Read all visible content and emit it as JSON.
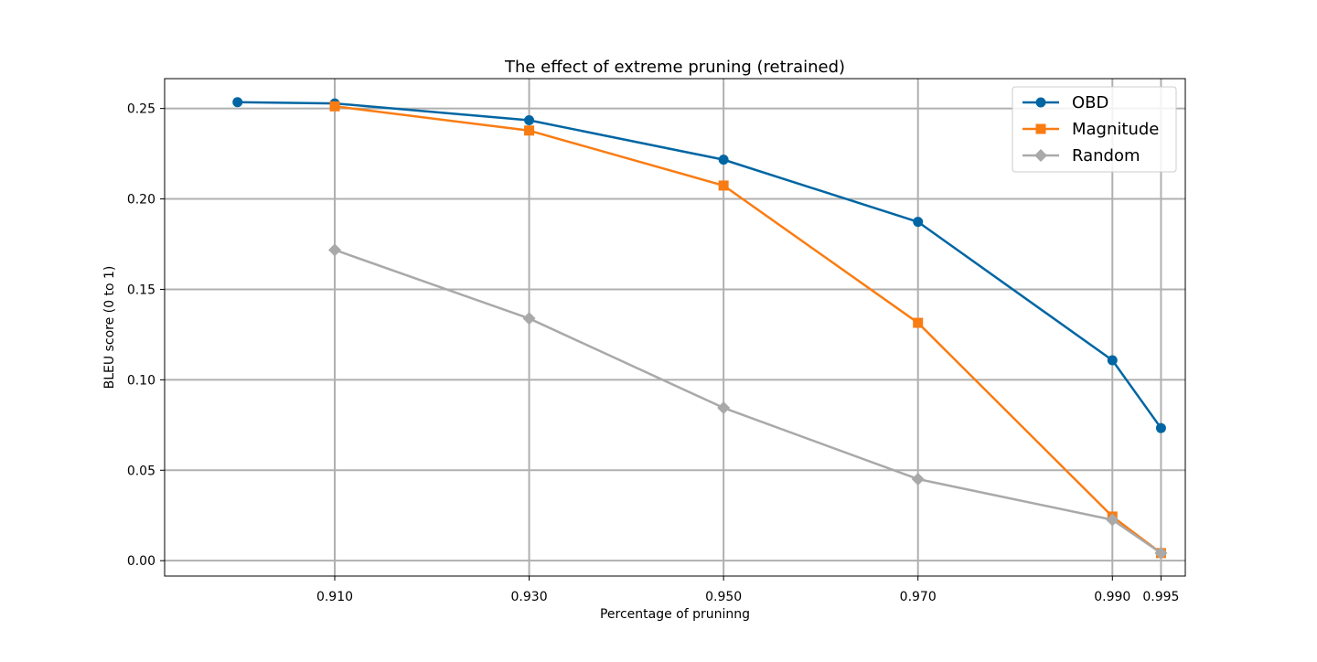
{
  "chart_data": {
    "type": "line",
    "title": "The effect of extreme pruning (retrained)",
    "xlabel": "Percentage of pruninng",
    "ylabel": "BLEU score (0 to 1)",
    "xlim": [
      0.8925,
      0.9975
    ],
    "ylim": [
      -0.0085,
      0.2665
    ],
    "xticks": [
      0.91,
      0.93,
      0.95,
      0.97,
      0.99,
      0.995
    ],
    "xtick_labels": [
      "0.910",
      "0.930",
      "0.950",
      "0.970",
      "0.990",
      "0.995"
    ],
    "yticks": [
      0.0,
      0.05,
      0.1,
      0.15,
      0.2,
      0.25
    ],
    "ytick_labels": [
      "0.00",
      "0.05",
      "0.10",
      "0.15",
      "0.20",
      "0.25"
    ],
    "grid": true,
    "legend_position": "upper right",
    "series": [
      {
        "name": "OBD",
        "color": "#0066a3",
        "marker": "circle",
        "x": [
          0.9,
          0.91,
          0.93,
          0.95,
          0.97,
          0.99,
          0.995
        ],
        "y": [
          0.2535,
          0.2528,
          0.2435,
          0.2217,
          0.1873,
          0.1108,
          0.0733
        ]
      },
      {
        "name": "Magnitude",
        "color": "#f97c12",
        "marker": "square",
        "x": [
          0.91,
          0.93,
          0.95,
          0.97,
          0.99,
          0.995
        ],
        "y": [
          0.2512,
          0.2378,
          0.2074,
          0.1315,
          0.0244,
          0.0042
        ]
      },
      {
        "name": "Random",
        "color": "#a9a9a9",
        "marker": "diamond",
        "x": [
          0.91,
          0.93,
          0.95,
          0.97,
          0.99,
          0.995
        ],
        "y": [
          0.1718,
          0.1339,
          0.0845,
          0.0451,
          0.0226,
          0.0042
        ]
      }
    ]
  }
}
